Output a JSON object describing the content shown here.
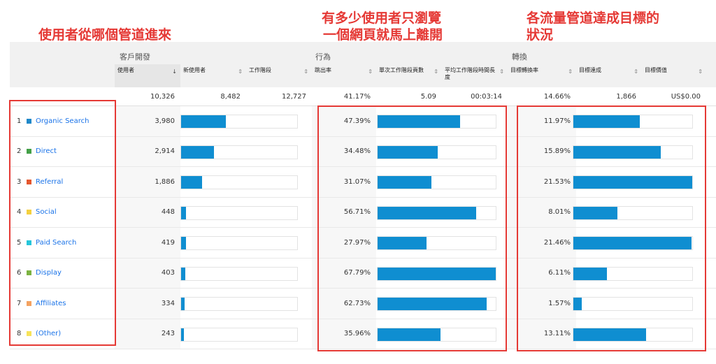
{
  "annotations": {
    "channel": "使用者從哪個管道進來",
    "bounce_line1": "有多少使用者只瀏覽",
    "bounce_line2": "一個網頁就馬上離開",
    "conv_line1": "各流量管道達成目標的",
    "conv_line2": "狀況"
  },
  "groups": {
    "acquisition": "客戶開發",
    "behavior": "行為",
    "conversion": "轉換"
  },
  "metrics": {
    "users": "使用者",
    "new_users": "新使用者",
    "sessions": "工作階段",
    "bounce_rate": "跳出率",
    "pages_per_session": "單次工作階段頁數",
    "avg_session_duration": "平均工作階段時間長度",
    "goal_conv_rate": "目標轉換率",
    "goal_completions": "目標達成",
    "goal_value": "目標價值"
  },
  "sort_arrow": "↓",
  "totals": {
    "users": "10,326",
    "new_users": "8,482",
    "sessions": "12,727",
    "bounce_rate": "41.17%",
    "pages_per_session": "5.09",
    "avg_session_duration": "00:03:14",
    "goal_conv_rate": "14.66%",
    "goal_completions": "1,866",
    "goal_value": "US$0.00"
  },
  "colors": {
    "bar": "#0f8ed1",
    "link": "#1a73e8",
    "annotation": "#e53935"
  },
  "rows": [
    {
      "index": "1",
      "channel": "Organic Search",
      "color": "#1e88c9",
      "users": "3,980",
      "users_share": 0.385,
      "bounce_rate": "47.39%",
      "bounce_value": 47.39,
      "conv_rate": "11.97%",
      "conv_value": 11.97
    },
    {
      "index": "2",
      "channel": "Direct",
      "color": "#43a047",
      "users": "2,914",
      "users_share": 0.282,
      "bounce_rate": "34.48%",
      "bounce_value": 34.48,
      "conv_rate": "15.89%",
      "conv_value": 15.89
    },
    {
      "index": "3",
      "channel": "Referral",
      "color": "#e4572e",
      "users": "1,886",
      "users_share": 0.183,
      "bounce_rate": "31.07%",
      "bounce_value": 31.07,
      "conv_rate": "21.53%",
      "conv_value": 21.53
    },
    {
      "index": "4",
      "channel": "Social",
      "color": "#f4d03f",
      "users": "448",
      "users_share": 0.043,
      "bounce_rate": "56.71%",
      "bounce_value": 56.71,
      "conv_rate": "8.01%",
      "conv_value": 8.01
    },
    {
      "index": "5",
      "channel": "Paid Search",
      "color": "#26c6da",
      "users": "419",
      "users_share": 0.041,
      "bounce_rate": "27.97%",
      "bounce_value": 27.97,
      "conv_rate": "21.46%",
      "conv_value": 21.46
    },
    {
      "index": "6",
      "channel": "Display",
      "color": "#7cb342",
      "users": "403",
      "users_share": 0.039,
      "bounce_rate": "67.79%",
      "bounce_value": 67.79,
      "conv_rate": "6.11%",
      "conv_value": 6.11
    },
    {
      "index": "7",
      "channel": "Affiliates",
      "color": "#f4a261",
      "users": "334",
      "users_share": 0.032,
      "bounce_rate": "62.73%",
      "bounce_value": 62.73,
      "conv_rate": "1.57%",
      "conv_value": 1.57
    },
    {
      "index": "8",
      "channel": "(Other)",
      "color": "#f7e35a",
      "users": "243",
      "users_share": 0.024,
      "bounce_rate": "35.96%",
      "bounce_value": 35.96,
      "conv_rate": "13.11%",
      "conv_value": 13.11
    }
  ]
}
